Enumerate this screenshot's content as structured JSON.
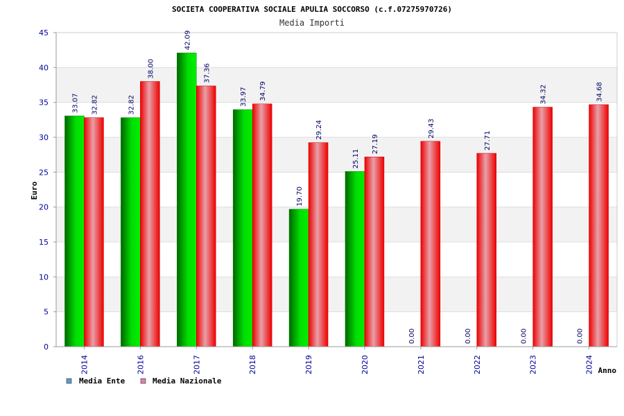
{
  "chart_data": {
    "type": "bar",
    "title": "SOCIETA COOPERATIVA SOCIALE APULIA SOCCORSO (c.f.07275970726)",
    "subtitle": "Media Importi",
    "xlabel": "Anno",
    "ylabel": "Euro",
    "ylim": [
      0,
      45
    ],
    "yticks": [
      0,
      5,
      10,
      15,
      20,
      25,
      30,
      35,
      40,
      45
    ],
    "categories": [
      "2014",
      "2016",
      "2017",
      "2018",
      "2019",
      "2020",
      "2021",
      "2022",
      "2023",
      "2024"
    ],
    "series": [
      {
        "name": "Media Ente",
        "values": [
          33.07,
          32.82,
          42.09,
          33.97,
          19.7,
          25.11,
          0.0,
          0.0,
          0.0,
          0.0
        ],
        "labels": [
          "33.07",
          "32.82",
          "42.09",
          "33.97",
          "19.70",
          "25.11",
          "0.00",
          "0.00",
          "0.00",
          "0.00"
        ],
        "color": "#00cc00",
        "legend_color": "#5b9bd5"
      },
      {
        "name": "Media Nazionale",
        "values": [
          32.82,
          38.0,
          37.36,
          34.79,
          29.24,
          27.19,
          29.43,
          27.71,
          34.32,
          34.68
        ],
        "labels": [
          "32.82",
          "38.00",
          "37.36",
          "34.79",
          "29.24",
          "27.19",
          "29.43",
          "27.71",
          "34.32",
          "34.68"
        ],
        "color": "#ee0000",
        "legend_color": "#e07fb0"
      }
    ],
    "grid": true,
    "legend_position": "bottom-left",
    "colors": {
      "tick_text": "#000099",
      "label_text": "#000066",
      "title_text": "#000000",
      "band": "#f2f2f2",
      "grid": "#dddddd"
    }
  }
}
